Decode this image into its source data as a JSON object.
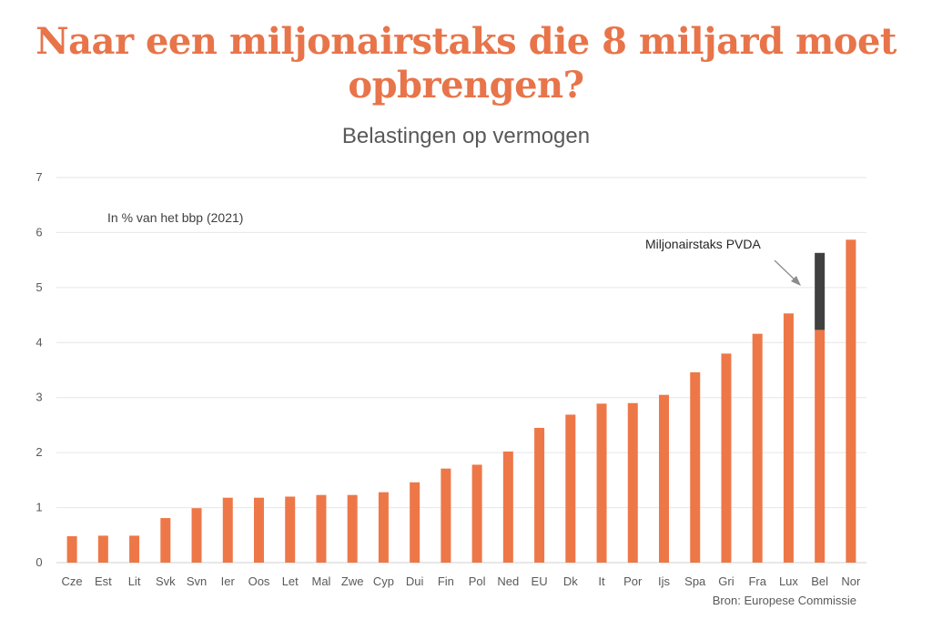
{
  "title": "Naar een miljonairstaks die 8 miljard moet opbrengen?",
  "subtitle": "Belastingen op vermogen",
  "unit_label": "In % van het bbp (2021)",
  "source": "Bron: Europese Commissie",
  "annotation": "Miljonairstaks PVDA",
  "colors": {
    "title": "#e8744a",
    "bar": "#ee7748",
    "extra": "#404040",
    "grid": "#e6e6e6"
  },
  "chart_data": {
    "type": "bar",
    "title": "Belastingen op vermogen",
    "xlabel": "",
    "ylabel": "In % van het bbp (2021)",
    "ylim": [
      0,
      7
    ],
    "yticks": [
      0,
      1,
      2,
      3,
      4,
      5,
      6,
      7
    ],
    "grid": true,
    "categories": [
      "Cze",
      "Est",
      "Lit",
      "Svk",
      "Svn",
      "Ier",
      "Oos",
      "Let",
      "Mal",
      "Zwe",
      "Cyp",
      "Dui",
      "Fin",
      "Pol",
      "Ned",
      "EU",
      "Dk",
      "It",
      "Por",
      "Ijs",
      "Spa",
      "Gri",
      "Fra",
      "Lux",
      "Bel",
      "Nor"
    ],
    "series": [
      {
        "values": [
          0.48,
          0.49,
          0.49,
          0.81,
          0.99,
          1.18,
          1.18,
          1.2,
          1.23,
          1.23,
          1.28,
          1.46,
          1.71,
          1.78,
          2.02,
          2.45,
          2.69,
          2.89,
          2.9,
          3.05,
          3.46,
          3.8,
          4.16,
          4.53,
          4.23,
          5.87
        ]
      },
      {
        "name": "Miljonairstaks PVDA",
        "values": [
          0,
          0,
          0,
          0,
          0,
          0,
          0,
          0,
          0,
          0,
          0,
          0,
          0,
          0,
          0,
          0,
          0,
          0,
          0,
          0,
          0,
          0,
          0,
          0,
          1.4,
          0
        ]
      }
    ]
  }
}
